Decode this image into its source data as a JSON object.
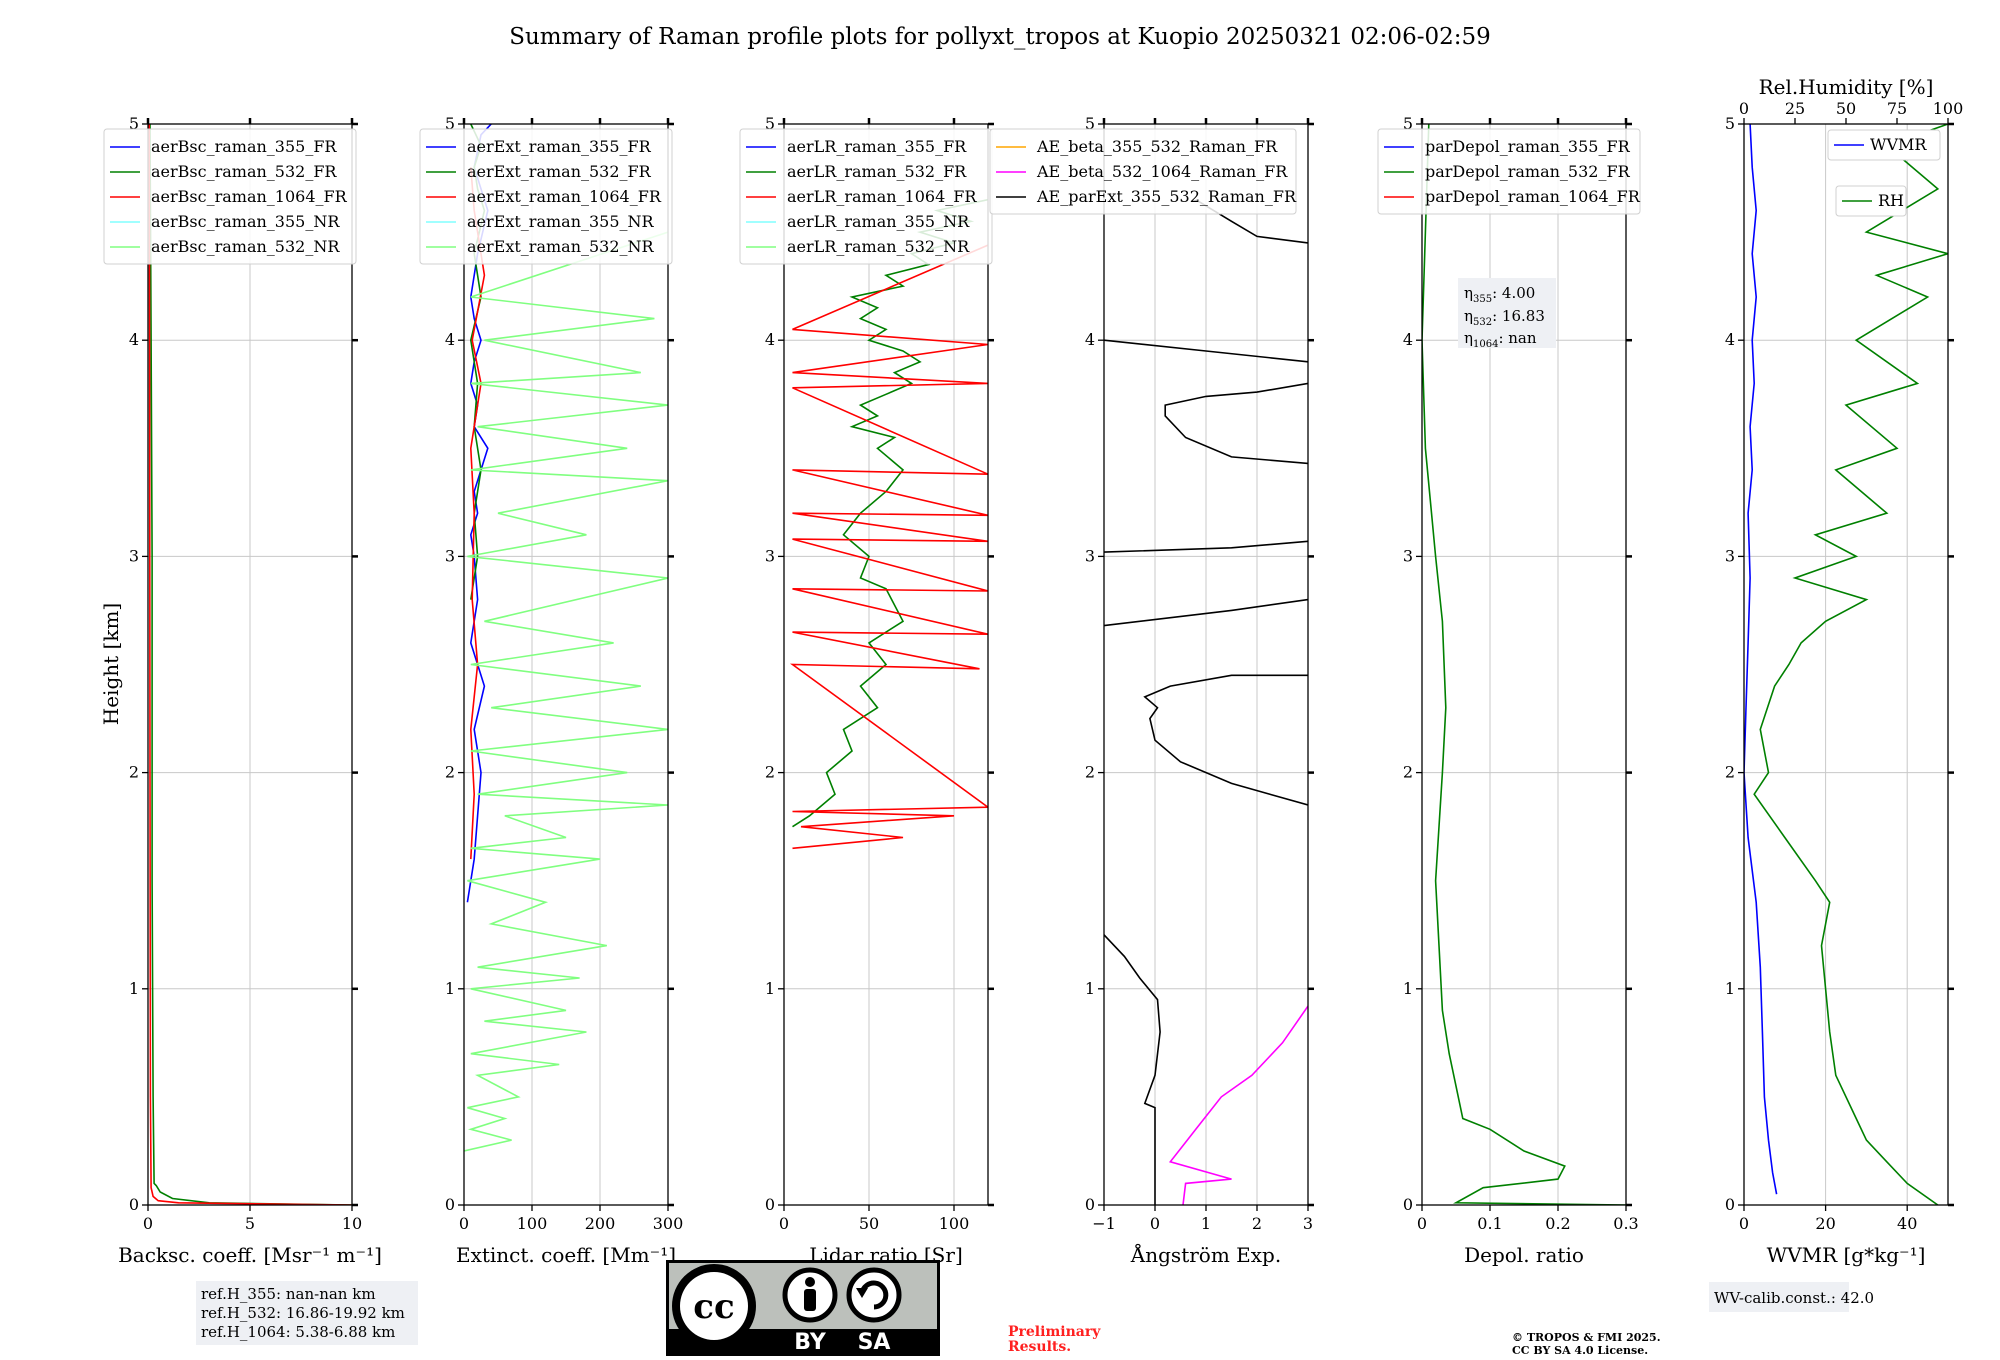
{
  "title": "Summary of Raman profile plots for pollyxt_tropos at Kuopio 20250321 02:06-02:59",
  "y_label": "Height [km]",
  "y_ticks": [
    "0",
    "1",
    "2",
    "3",
    "4",
    "5"
  ],
  "ref_heights": [
    "ref.H_355: nan-nan km",
    "ref.H_532: 16.86-19.92 km",
    "ref.H_1064: 5.38-6.88 km"
  ],
  "eta_box": [
    {
      "sym": "η",
      "sub": "355",
      "val": ": 4.00"
    },
    {
      "sym": "η",
      "sub": "532",
      "val": ": 16.83"
    },
    {
      "sym": "η",
      "sub": "1064",
      "val": ": nan"
    }
  ],
  "wv_calib": "WV-calib.const.: 42.0",
  "preliminary": [
    "Preliminary",
    "Results."
  ],
  "copyright": [
    "© TROPOS & FMI 2025.",
    "CC BY SA 4.0 License."
  ],
  "license_badge": {
    "by": "BY",
    "sa": "SA",
    "cc": "cc"
  },
  "colors": {
    "blue": "#0000ff",
    "green": "#008000",
    "red": "#ff0000",
    "cyan": "#80ffff",
    "lightgreen": "#80ff80",
    "orange": "#ffa500",
    "magenta": "#ff00ff",
    "black": "#000000"
  },
  "chart_data": [
    {
      "id": "bsc",
      "type": "line",
      "xlabel": "Backsc. coeff. [Msr⁻¹ m⁻¹]",
      "ylabel": "Height [km]",
      "xlim": [
        0,
        10
      ],
      "ylim": [
        0,
        5
      ],
      "grid": true,
      "legend": "top-left",
      "xticks": [
        0,
        5,
        10
      ],
      "series": [
        {
          "name": "aerBsc_raman_355_FR",
          "color": "#0000ff",
          "x": [],
          "y": []
        },
        {
          "name": "aerBsc_raman_532_FR",
          "color": "#008000",
          "x": [
            10,
            3,
            1.2,
            0.6,
            0.4,
            0.3,
            0.25,
            0.2,
            0.2,
            0.15,
            0.1
          ],
          "y": [
            0,
            0.01,
            0.03,
            0.06,
            0.09,
            0.1,
            0.5,
            1.5,
            3,
            4,
            5
          ]
        },
        {
          "name": "aerBsc_raman_1064_FR",
          "color": "#ff0000",
          "x": [
            10,
            1.5,
            0.5,
            0.25,
            0.15,
            0.12,
            0.1,
            0.08,
            0.06
          ],
          "y": [
            0,
            0.01,
            0.02,
            0.04,
            0.08,
            0.5,
            2,
            4,
            5
          ]
        },
        {
          "name": "aerBsc_raman_355_NR",
          "color": "#80ffff",
          "x": [],
          "y": []
        },
        {
          "name": "aerBsc_raman_532_NR",
          "color": "#80ff80",
          "x": [],
          "y": []
        }
      ]
    },
    {
      "id": "ext",
      "type": "line",
      "xlabel": "Extinct. coeff. [Mm⁻¹]",
      "xlim": [
        0,
        300
      ],
      "ylim": [
        0,
        5
      ],
      "grid": true,
      "legend": "top-left",
      "xticks": [
        0,
        100,
        200,
        300
      ],
      "series": [
        {
          "name": "aerExt_raman_355_FR",
          "color": "#0000ff",
          "x": [
            5,
            15,
            20,
            25,
            15,
            30,
            10,
            20,
            15,
            10,
            20,
            15,
            25,
            35,
            15,
            20,
            10,
            15,
            25,
            15,
            10,
            20,
            35,
            15,
            25,
            40
          ],
          "y": [
            1.4,
            1.6,
            1.8,
            2.0,
            2.2,
            2.4,
            2.6,
            2.8,
            3.0,
            3.1,
            3.2,
            3.3,
            3.4,
            3.5,
            3.6,
            3.7,
            3.8,
            3.9,
            4.0,
            4.1,
            4.2,
            4.4,
            4.6,
            4.8,
            4.95,
            5.0
          ]
        },
        {
          "name": "aerExt_raman_532_FR",
          "color": "#008000",
          "x": [
            10,
            20,
            15,
            25,
            15,
            20,
            10,
            25,
            15,
            30,
            20,
            15,
            25,
            10
          ],
          "y": [
            2.8,
            3.0,
            3.2,
            3.4,
            3.6,
            3.8,
            4.0,
            4.2,
            4.4,
            4.6,
            4.7,
            4.8,
            4.9,
            5.0
          ]
        },
        {
          "name": "aerExt_raman_1064_FR",
          "color": "#ff0000",
          "x": [
            10,
            15,
            10,
            20,
            12,
            15,
            10,
            25,
            12,
            30,
            15,
            10
          ],
          "y": [
            1.6,
            1.9,
            2.2,
            2.5,
            2.8,
            3.2,
            3.5,
            3.8,
            4.0,
            4.3,
            4.6,
            4.8
          ]
        },
        {
          "name": "aerExt_raman_355_NR",
          "color": "#80ffff",
          "x": [],
          "y": []
        },
        {
          "name": "aerExt_raman_532_NR",
          "color": "#80ff80",
          "x": [
            0,
            70,
            10,
            60,
            5,
            80,
            20,
            140,
            10,
            180,
            30,
            150,
            10,
            170,
            20,
            210,
            40,
            120,
            5,
            200,
            10,
            150,
            60,
            300,
            20,
            240,
            10,
            300,
            40,
            260,
            10,
            220,
            30,
            300,
            5,
            180,
            50,
            300,
            10,
            240,
            20,
            300,
            10,
            260,
            30,
            280,
            10,
            300
          ],
          "y": [
            0.25,
            0.3,
            0.35,
            0.4,
            0.45,
            0.5,
            0.6,
            0.65,
            0.7,
            0.8,
            0.85,
            0.9,
            1.0,
            1.05,
            1.1,
            1.2,
            1.3,
            1.4,
            1.5,
            1.6,
            1.65,
            1.7,
            1.8,
            1.85,
            1.9,
            2.0,
            2.1,
            2.2,
            2.3,
            2.4,
            2.5,
            2.6,
            2.7,
            2.9,
            3.0,
            3.1,
            3.2,
            3.35,
            3.4,
            3.5,
            3.6,
            3.7,
            3.8,
            3.85,
            4.0,
            4.1,
            4.2,
            4.5
          ]
        }
      ]
    },
    {
      "id": "lr",
      "type": "line",
      "xlabel": "Lidar ratio [Sr]",
      "xlim": [
        0,
        120
      ],
      "ylim": [
        0,
        5
      ],
      "grid": true,
      "legend": "top-left",
      "xticks": [
        0,
        50,
        100
      ],
      "series": [
        {
          "name": "aerLR_raman_355_FR",
          "color": "#0000ff",
          "x": [],
          "y": []
        },
        {
          "name": "aerLR_raman_532_FR",
          "color": "#008000",
          "x": [
            5,
            15,
            30,
            25,
            40,
            35,
            55,
            45,
            60,
            50,
            70,
            60,
            45,
            50,
            35,
            45,
            60,
            70,
            55,
            65,
            40,
            55,
            45,
            60,
            75,
            65,
            80,
            70,
            50,
            60,
            45,
            55,
            40,
            70,
            60,
            85,
            75,
            100,
            80,
            110,
            90,
            120
          ],
          "y": [
            1.75,
            1.8,
            1.9,
            2.0,
            2.1,
            2.2,
            2.3,
            2.4,
            2.5,
            2.6,
            2.7,
            2.85,
            2.9,
            3.0,
            3.1,
            3.2,
            3.3,
            3.4,
            3.5,
            3.55,
            3.6,
            3.65,
            3.7,
            3.75,
            3.8,
            3.85,
            3.9,
            3.95,
            4.0,
            4.05,
            4.1,
            4.15,
            4.2,
            4.25,
            4.3,
            4.35,
            4.4,
            4.45,
            4.5,
            4.55,
            4.6,
            4.65
          ]
        },
        {
          "name": "aerLR_raman_1064_FR",
          "color": "#ff0000",
          "x": [
            5,
            70,
            10,
            100,
            5,
            120,
            5,
            115,
            5,
            120,
            5,
            120,
            5,
            120,
            5,
            120,
            5,
            120,
            5,
            120,
            5,
            120,
            5,
            120
          ],
          "y": [
            1.65,
            1.7,
            1.75,
            1.8,
            1.82,
            1.84,
            2.5,
            2.48,
            2.65,
            2.64,
            2.85,
            2.84,
            3.08,
            3.07,
            3.2,
            3.19,
            3.4,
            3.38,
            3.78,
            3.8,
            3.85,
            3.98,
            4.05,
            4.44
          ]
        },
        {
          "name": "aerLR_raman_355_NR",
          "color": "#80ffff",
          "x": [],
          "y": []
        },
        {
          "name": "aerLR_raman_532_NR",
          "color": "#80ff80",
          "x": [],
          "y": []
        }
      ]
    },
    {
      "id": "ae",
      "type": "line",
      "xlabel": "Ångström Exp.",
      "xlim": [
        -1,
        3
      ],
      "ylim": [
        0,
        5
      ],
      "grid": true,
      "legend": "top-left",
      "xticks": [
        -1,
        0,
        1,
        2,
        3
      ],
      "series": [
        {
          "name": "AE_beta_355_532_Raman_FR",
          "color": "#ffa500",
          "x": [],
          "y": []
        },
        {
          "name": "AE_beta_532_1064_Raman_FR",
          "color": "#ff00ff",
          "x": [
            0.55,
            0.6,
            1.5,
            0.3,
            0.8,
            1.3,
            1.9,
            2.5,
            3.0
          ],
          "y": [
            0.0,
            0.1,
            0.12,
            0.2,
            0.35,
            0.5,
            0.6,
            0.75,
            0.92
          ]
        },
        {
          "name": "AE_parExt_355_532_Raman_FR",
          "color": "#000000",
          "x": [
            0,
            0,
            -0.2,
            0,
            0.1,
            0.05,
            -0.3,
            -0.6,
            -1.0,
            null,
            3.0,
            1.5,
            0.5,
            0.0,
            -0.1,
            0.05,
            -0.2,
            0.3,
            1.5,
            3.0,
            null,
            -1.0,
            1.5,
            3.0,
            null,
            -1.0,
            1.5,
            3.0,
            null,
            3.0,
            1.5,
            0.6,
            0.2,
            0.2,
            1.0,
            2.0,
            3.0,
            null,
            -1.0,
            1.0,
            3.0,
            null,
            0.8,
            1.5,
            2.0,
            3.0
          ],
          "y": [
            0.0,
            0.45,
            0.47,
            0.6,
            0.8,
            0.95,
            1.05,
            1.15,
            1.25,
            null,
            1.85,
            1.95,
            2.05,
            2.15,
            2.25,
            2.3,
            2.35,
            2.4,
            2.45,
            2.45,
            null,
            2.68,
            2.75,
            2.8,
            null,
            3.02,
            3.04,
            3.07,
            null,
            3.43,
            3.46,
            3.55,
            3.65,
            3.7,
            3.74,
            3.76,
            3.8,
            null,
            4.0,
            3.95,
            3.9,
            null,
            4.65,
            4.55,
            4.48,
            4.45
          ]
        }
      ]
    },
    {
      "id": "dep",
      "type": "line",
      "xlabel": "Depol. ratio",
      "xlim": [
        0,
        0.3
      ],
      "ylim": [
        0,
        5
      ],
      "grid": true,
      "legend": "top-left",
      "xticks": [
        0.0,
        0.1,
        0.2,
        0.3
      ],
      "series": [
        {
          "name": "parDepol_raman_355_FR",
          "color": "#0000ff",
          "x": [],
          "y": []
        },
        {
          "name": "parDepol_raman_532_FR",
          "color": "#008000",
          "x": [
            0.3,
            0.05,
            0.09,
            0.2,
            0.21,
            0.15,
            0.1,
            0.06,
            0.05,
            0.04,
            0.03,
            0.025,
            0.02,
            0.03,
            0.035,
            0.03,
            0.02,
            0.005,
            0.0,
            0.01
          ],
          "y": [
            0.0,
            0.01,
            0.08,
            0.12,
            0.18,
            0.25,
            0.35,
            0.4,
            0.55,
            0.7,
            0.9,
            1.2,
            1.5,
            2.0,
            2.3,
            2.7,
            3.0,
            3.5,
            4.0,
            5.0
          ]
        },
        {
          "name": "parDepol_raman_1064_FR",
          "color": "#ff0000",
          "x": [],
          "y": []
        }
      ]
    },
    {
      "id": "wv",
      "type": "line",
      "xlabel": "WVMR [g*kg⁻¹]",
      "xlim": [
        0,
        50
      ],
      "ylim": [
        0,
        5
      ],
      "grid": true,
      "legend": "top-right",
      "xticks": [
        0,
        20,
        40
      ],
      "top_axis": {
        "label": "Rel.Humidity [%]",
        "xlim": [
          0,
          100
        ],
        "xticks": [
          0,
          25,
          50,
          75,
          100
        ]
      },
      "series": [
        {
          "name": "WVMR",
          "color": "#0000ff",
          "axis": "bottom",
          "x": [
            8,
            7,
            6,
            5,
            4.5,
            4,
            3,
            1,
            0,
            0.5,
            1,
            1.5,
            1,
            2,
            1.5,
            2.5,
            2,
            3,
            2,
            3,
            2,
            1.5
          ],
          "y": [
            0.05,
            0.15,
            0.3,
            0.5,
            0.8,
            1.1,
            1.4,
            1.7,
            2.0,
            2.3,
            2.6,
            2.9,
            3.2,
            3.4,
            3.6,
            3.8,
            4.0,
            4.2,
            4.4,
            4.6,
            4.8,
            5.0
          ]
        },
        {
          "name": "RH",
          "color": "#008000",
          "axis": "top",
          "x": [
            95,
            80,
            70,
            60,
            55,
            45,
            42,
            40,
            38,
            42,
            35,
            20,
            5,
            12,
            8,
            15,
            22,
            28,
            40,
            60,
            25,
            55,
            35,
            70,
            45,
            75,
            50,
            85,
            55,
            90,
            65,
            100,
            60,
            95,
            70,
            100
          ],
          "y": [
            0.0,
            0.1,
            0.2,
            0.3,
            0.4,
            0.6,
            0.8,
            1.0,
            1.2,
            1.4,
            1.5,
            1.7,
            1.9,
            2.0,
            2.2,
            2.4,
            2.5,
            2.6,
            2.7,
            2.8,
            2.9,
            3.0,
            3.1,
            3.2,
            3.4,
            3.5,
            3.7,
            3.8,
            4.0,
            4.2,
            4.3,
            4.4,
            4.5,
            4.7,
            4.9,
            5.0
          ]
        }
      ]
    }
  ]
}
